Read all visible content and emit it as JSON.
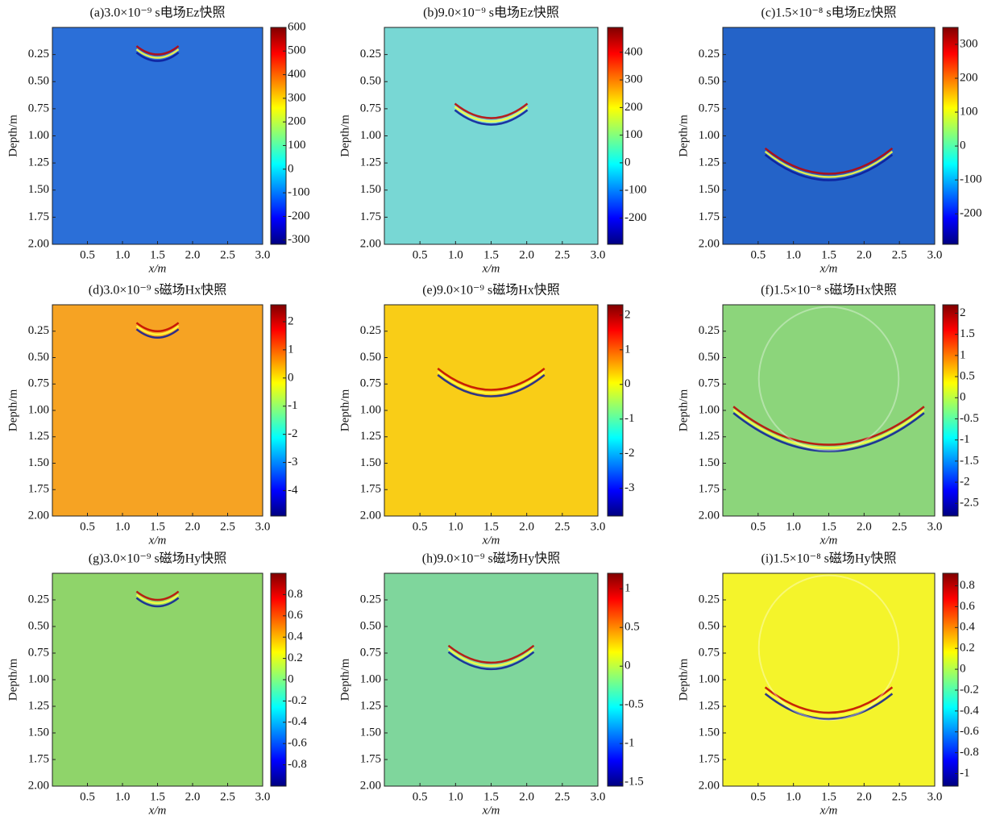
{
  "chart_data": [
    {
      "type": "heatmap",
      "title": "(a)3.0×10⁻⁹ s电场Ez快照",
      "xlabel": "x/m",
      "ylabel": "Depth/m",
      "color": "#2b6fd8",
      "xlim": [
        0,
        3
      ],
      "ylim": [
        0,
        2
      ],
      "xticks": [
        0.5,
        {
          "value": 1,
          "label": "1.0"
        },
        1.5,
        {
          "value": 2,
          "label": "2.0"
        },
        2.5,
        {
          "value": 3,
          "label": "3.0"
        }
      ],
      "yticks": [
        0.25,
        {
          "value": 0.5,
          "label": "0.50"
        },
        0.75,
        {
          "value": 1,
          "label": "1.00"
        },
        1.25,
        {
          "value": 1.5,
          "label": "1.50"
        },
        1.75,
        {
          "value": 2,
          "label": "2.00"
        }
      ],
      "clim": [
        -318,
        600
      ],
      "cticks": [
        600,
        500,
        400,
        300,
        200,
        100,
        0,
        -100,
        -200,
        -300
      ]
    },
    {
      "type": "heatmap",
      "title": "(b)9.0×10⁻⁹ s电场Ez快照",
      "xlabel": "x/m",
      "ylabel": "Depth/m",
      "color": "#78d7d4",
      "xlim": [
        0,
        3
      ],
      "ylim": [
        0,
        2
      ],
      "xticks": [
        0.5,
        {
          "value": 1,
          "label": "1.0"
        },
        1.5,
        {
          "value": 2,
          "label": "2.0"
        },
        2.5,
        {
          "value": 3,
          "label": "3.0"
        }
      ],
      "yticks": [
        0.25,
        {
          "value": 0.5,
          "label": "0.50"
        },
        0.75,
        {
          "value": 1,
          "label": "1.00"
        },
        1.25,
        {
          "value": 1.5,
          "label": "1.50"
        },
        1.75,
        {
          "value": 2,
          "label": "2.00"
        }
      ],
      "clim": [
        -295,
        490
      ],
      "cticks": [
        400,
        300,
        200,
        100,
        0,
        -100,
        -200
      ]
    },
    {
      "type": "heatmap",
      "title": "(c)1.5×10⁻⁸ s电场Ez快照",
      "xlabel": "x/m",
      "ylabel": "Depth/m",
      "color": "#2463c8",
      "xlim": [
        0,
        3
      ],
      "ylim": [
        0,
        2
      ],
      "xticks": [
        0.5,
        {
          "value": 1,
          "label": "1.0"
        },
        1.5,
        {
          "value": 2,
          "label": "2.0"
        },
        2.5,
        {
          "value": 3,
          "label": "3.0"
        }
      ],
      "yticks": [
        0.25,
        {
          "value": 0.5,
          "label": "0.50"
        },
        0.75,
        {
          "value": 1,
          "label": "1.00"
        },
        1.25,
        {
          "value": 1.5,
          "label": "1.50"
        },
        1.75,
        {
          "value": 2,
          "label": "2.00"
        }
      ],
      "clim": [
        -290,
        350
      ],
      "cticks": [
        300,
        200,
        100,
        0,
        -100,
        -200
      ]
    },
    {
      "type": "heatmap",
      "title": "(d)3.0×10⁻⁹ s磁场Hx快照",
      "xlabel": "x/m",
      "ylabel": "Depth/m",
      "color": "#f6a323",
      "xlim": [
        0,
        3
      ],
      "ylim": [
        0,
        2
      ],
      "xticks": [
        0.5,
        {
          "value": 1,
          "label": "1.0"
        },
        1.5,
        {
          "value": 2,
          "label": "2.0"
        },
        2.5,
        {
          "value": 3,
          "label": "3.0"
        }
      ],
      "yticks": [
        0.25,
        {
          "value": 0.5,
          "label": "0.50"
        },
        0.75,
        {
          "value": 1,
          "label": "1.00"
        },
        1.25,
        {
          "value": 1.5,
          "label": "1.50"
        },
        1.75,
        {
          "value": 2,
          "label": "2.00"
        }
      ],
      "clim": [
        -4.9,
        2.6
      ],
      "cticks": [
        2,
        1,
        0,
        -1,
        -2,
        -3,
        -4
      ]
    },
    {
      "type": "heatmap",
      "title": "(e)9.0×10⁻⁹ s磁场Hx快照",
      "xlabel": "x/m",
      "ylabel": "Depth/m",
      "color": "#f9cd17",
      "xlim": [
        0,
        3
      ],
      "ylim": [
        0,
        2
      ],
      "xticks": [
        0.5,
        {
          "value": 1,
          "label": "1.0"
        },
        1.5,
        {
          "value": 2,
          "label": "2.0"
        },
        2.5,
        {
          "value": 3,
          "label": "3.0"
        }
      ],
      "yticks": [
        0.25,
        {
          "value": 0.5,
          "label": "0.50"
        },
        0.75,
        {
          "value": 1,
          "label": "1.00"
        },
        1.25,
        {
          "value": 1.5,
          "label": "1.50"
        },
        1.75,
        {
          "value": 2,
          "label": "2.00"
        }
      ],
      "clim": [
        -3.8,
        2.3
      ],
      "cticks": [
        2,
        1,
        0,
        -1,
        -2,
        -3
      ]
    },
    {
      "type": "heatmap",
      "title": "(f)1.5×10⁻⁸ s磁场Hx快照",
      "xlabel": "x/m",
      "ylabel": "Depth/m",
      "color": "#8cd57b",
      "xlim": [
        0,
        3
      ],
      "ylim": [
        0,
        2
      ],
      "xticks": [
        0.5,
        {
          "value": 1,
          "label": "1.0"
        },
        1.5,
        {
          "value": 2,
          "label": "2.0"
        },
        2.5,
        {
          "value": 3,
          "label": "3.0"
        }
      ],
      "yticks": [
        0.25,
        {
          "value": 0.5,
          "label": "0.50"
        },
        0.75,
        {
          "value": 1,
          "label": "1.00"
        },
        1.25,
        {
          "value": 1.5,
          "label": "1.50"
        },
        1.75,
        {
          "value": 2,
          "label": "2.00"
        }
      ],
      "clim": [
        -2.8,
        2.2
      ],
      "cticks": [
        2,
        1.5,
        1,
        0.5,
        0,
        -0.5,
        -1,
        -1.5,
        -2,
        -2.5
      ]
    },
    {
      "type": "heatmap",
      "title": "(g)3.0×10⁻⁹ s磁场Hy快照",
      "xlabel": "x/m",
      "ylabel": "Depth/m",
      "color": "#8fd46a",
      "xlim": [
        0,
        3
      ],
      "ylim": [
        0,
        2
      ],
      "xticks": [
        0.5,
        {
          "value": 1,
          "label": "1.0"
        },
        1.5,
        {
          "value": 2,
          "label": "2.0"
        },
        2.5,
        {
          "value": 3,
          "label": "3.0"
        }
      ],
      "yticks": [
        0.25,
        {
          "value": 0.5,
          "label": "0.50"
        },
        0.75,
        {
          "value": 1,
          "label": "1.00"
        },
        1.25,
        {
          "value": 1.5,
          "label": "1.50"
        },
        1.75,
        {
          "value": 2,
          "label": "2.00"
        }
      ],
      "clim": [
        -1,
        1
      ],
      "cticks": [
        0.8,
        0.6,
        0.4,
        0.2,
        0,
        -0.2,
        -0.4,
        -0.6,
        -0.8
      ]
    },
    {
      "type": "heatmap",
      "title": "(h)9.0×10⁻⁹ s磁场Hy快照",
      "xlabel": "x/m",
      "ylabel": "Depth/m",
      "color": "#7fd69c",
      "xlim": [
        0,
        3
      ],
      "ylim": [
        0,
        2
      ],
      "xticks": [
        0.5,
        {
          "value": 1,
          "label": "1.0"
        },
        1.5,
        {
          "value": 2,
          "label": "2.0"
        },
        2.5,
        {
          "value": 3,
          "label": "3.0"
        }
      ],
      "yticks": [
        0.25,
        {
          "value": 0.5,
          "label": "0.50"
        },
        0.75,
        {
          "value": 1,
          "label": "1.00"
        },
        1.25,
        {
          "value": 1.5,
          "label": "1.50"
        },
        1.75,
        {
          "value": 2,
          "label": "2.00"
        }
      ],
      "clim": [
        -1.55,
        1.2
      ],
      "cticks": [
        1,
        0.5,
        0,
        -0.5,
        -1,
        -1.5
      ]
    },
    {
      "type": "heatmap",
      "title": "(i)1.5×10⁻⁸ s磁场Hy快照",
      "xlabel": "x/m",
      "ylabel": "Depth/m",
      "color": "#f4f42b",
      "xlim": [
        0,
        3
      ],
      "ylim": [
        0,
        2
      ],
      "xticks": [
        0.5,
        {
          "value": 1,
          "label": "1.0"
        },
        1.5,
        {
          "value": 2,
          "label": "2.0"
        },
        2.5,
        {
          "value": 3,
          "label": "3.0"
        }
      ],
      "yticks": [
        0.25,
        {
          "value": 0.5,
          "label": "0.50"
        },
        0.75,
        {
          "value": 1,
          "label": "1.00"
        },
        1.25,
        {
          "value": 1.5,
          "label": "1.50"
        },
        1.75,
        {
          "value": 2,
          "label": "2.00"
        }
      ],
      "clim": [
        -1.12,
        0.92
      ],
      "cticks": [
        0.8,
        0.6,
        0.4,
        0.2,
        0,
        -0.2,
        -0.4,
        -0.6,
        -0.8,
        -1
      ]
    }
  ]
}
